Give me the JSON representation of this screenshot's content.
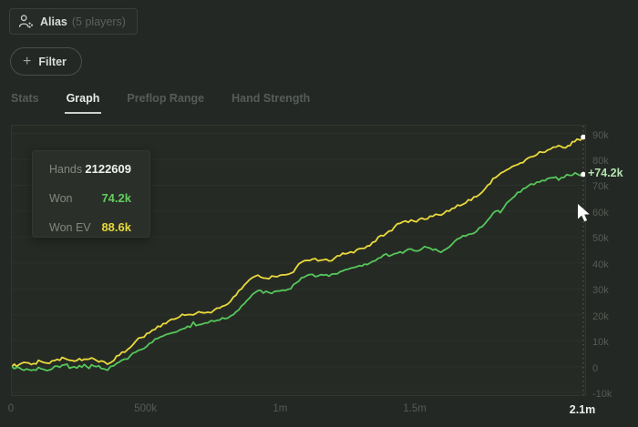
{
  "header": {
    "alias_chip": {
      "icon": "players-icon",
      "name": "Alias",
      "suffix": "(5 players)"
    },
    "filter_button": {
      "icon": "plus-icon",
      "label": "Filter"
    }
  },
  "tabs": {
    "items": [
      {
        "label": "Stats",
        "active": false
      },
      {
        "label": "Graph",
        "active": true
      },
      {
        "label": "Preflop Range",
        "active": false
      },
      {
        "label": "Hand Strength",
        "active": false
      }
    ]
  },
  "tooltip": {
    "rows": [
      {
        "label": "Hands",
        "value": "2122609",
        "color": "#f1f2ef"
      },
      {
        "label": "Won",
        "value": "74.2k",
        "color": "#62cd5f"
      },
      {
        "label": "Won EV",
        "value": "88.6k",
        "color": "#e5d83a"
      }
    ]
  },
  "colors": {
    "background": "#232825",
    "plot_background": "#262a24",
    "gridline": "#2d312b",
    "won_line": "#55c75c",
    "won_ev_line": "#e9da3d",
    "axis_label": "#565b54",
    "current_value_label": "#b5e3ae"
  },
  "chart_data": {
    "type": "line",
    "units_note": "x = hands in thousands, y = amount won in thousands (k)",
    "xlim": [
      0,
      2122.609
    ],
    "ylim": [
      -11,
      93
    ],
    "grid": true,
    "legend_position": "none",
    "x_ticks": [
      {
        "label": "0",
        "x": 0
      },
      {
        "label": "500k",
        "x": 500
      },
      {
        "label": "1m",
        "x": 1000
      },
      {
        "label": "1.5m",
        "x": 1500
      },
      {
        "label": "2.1m",
        "x": 2122.609,
        "current": true
      }
    ],
    "y_ticks": [
      {
        "label": "90k",
        "y": 90
      },
      {
        "label": "80k",
        "y": 80
      },
      {
        "label": "70k",
        "y": 70
      },
      {
        "label": "60k",
        "y": 60
      },
      {
        "label": "50k",
        "y": 50
      },
      {
        "label": "40k",
        "y": 40
      },
      {
        "label": "30k",
        "y": 30
      },
      {
        "label": "20k",
        "y": 20
      },
      {
        "label": "10k",
        "y": 10
      },
      {
        "label": "0",
        "y": 0
      },
      {
        "label": "-10k",
        "y": -10
      }
    ],
    "cursor": {
      "hands": 2122609,
      "won_display": "+74.2k",
      "won": 74.2,
      "won_ev": 88.6
    },
    "series": [
      {
        "name": "Won EV",
        "color": "#e9da3d",
        "points": [
          [
            0,
            0
          ],
          [
            27,
            0.8
          ],
          [
            54,
            1.5
          ],
          [
            81,
            1.2
          ],
          [
            108,
            2.0
          ],
          [
            129,
            1.4
          ],
          [
            149,
            2.2
          ],
          [
            169,
            2.8
          ],
          [
            196,
            3.2
          ],
          [
            223,
            2.4
          ],
          [
            251,
            3.1
          ],
          [
            278,
            2.8
          ],
          [
            305,
            3.0
          ],
          [
            332,
            2.2
          ],
          [
            355,
            0.9
          ],
          [
            379,
            2.4
          ],
          [
            399,
            4.4
          ],
          [
            420,
            5.6
          ],
          [
            440,
            7.4
          ],
          [
            460,
            9.8
          ],
          [
            481,
            11.2
          ],
          [
            501,
            12.8
          ],
          [
            521,
            14.0
          ],
          [
            542,
            15.6
          ],
          [
            562,
            16.6
          ],
          [
            582,
            17.6
          ],
          [
            603,
            18.3
          ],
          [
            623,
            19.2
          ],
          [
            643,
            19.8
          ],
          [
            663,
            20.1
          ],
          [
            684,
            20.5
          ],
          [
            704,
            20.9
          ],
          [
            728,
            21.0
          ],
          [
            752,
            21.9
          ],
          [
            772,
            22.6
          ],
          [
            792,
            23.6
          ],
          [
            812,
            25.2
          ],
          [
            833,
            27.6
          ],
          [
            853,
            30.0
          ],
          [
            873,
            32.5
          ],
          [
            894,
            34.4
          ],
          [
            914,
            35.3
          ],
          [
            934,
            34.2
          ],
          [
            955,
            33.9
          ],
          [
            975,
            34.8
          ],
          [
            995,
            35.2
          ],
          [
            1016,
            35.4
          ],
          [
            1036,
            36.0
          ],
          [
            1056,
            38.2
          ],
          [
            1076,
            40.3
          ],
          [
            1097,
            41.0
          ],
          [
            1117,
            41.5
          ],
          [
            1137,
            40.8
          ],
          [
            1158,
            41.2
          ],
          [
            1178,
            40.8
          ],
          [
            1198,
            41.8
          ],
          [
            1219,
            42.8
          ],
          [
            1239,
            43.5
          ],
          [
            1259,
            44.3
          ],
          [
            1280,
            45.0
          ],
          [
            1300,
            45.6
          ],
          [
            1320,
            46.5
          ],
          [
            1340,
            48.0
          ],
          [
            1361,
            50.0
          ],
          [
            1381,
            50.5
          ],
          [
            1401,
            52.3
          ],
          [
            1422,
            54.0
          ],
          [
            1442,
            55.3
          ],
          [
            1462,
            56.2
          ],
          [
            1483,
            56.6
          ],
          [
            1503,
            55.9
          ],
          [
            1523,
            57.3
          ],
          [
            1543,
            57.0
          ],
          [
            1564,
            58.0
          ],
          [
            1584,
            58.6
          ],
          [
            1604,
            59.1
          ],
          [
            1625,
            60.0
          ],
          [
            1645,
            61.2
          ],
          [
            1665,
            62.1
          ],
          [
            1686,
            63.2
          ],
          [
            1706,
            64.2
          ],
          [
            1726,
            65.6
          ],
          [
            1747,
            67.3
          ],
          [
            1767,
            70.0
          ],
          [
            1787,
            72.6
          ],
          [
            1807,
            73.8
          ],
          [
            1828,
            75.3
          ],
          [
            1848,
            76.4
          ],
          [
            1868,
            77.6
          ],
          [
            1889,
            78.6
          ],
          [
            1909,
            79.9
          ],
          [
            1929,
            81.0
          ],
          [
            1950,
            81.8
          ],
          [
            1970,
            82.7
          ],
          [
            1990,
            83.6
          ],
          [
            2011,
            84.7
          ],
          [
            2031,
            85.3
          ],
          [
            2048,
            84.5
          ],
          [
            2065,
            85.2
          ],
          [
            2082,
            86.8
          ],
          [
            2099,
            87.8
          ],
          [
            2112,
            87.4
          ],
          [
            2122.6,
            88.6
          ]
        ]
      },
      {
        "name": "Won",
        "color": "#55c75c",
        "points": [
          [
            0,
            0
          ],
          [
            27,
            -0.4
          ],
          [
            54,
            -0.9
          ],
          [
            81,
            -1.2
          ],
          [
            108,
            -0.8
          ],
          [
            129,
            -1.5
          ],
          [
            149,
            -0.9
          ],
          [
            169,
            0.2
          ],
          [
            196,
            0.7
          ],
          [
            223,
            -0.3
          ],
          [
            251,
            0.4
          ],
          [
            278,
            0.0
          ],
          [
            305,
            0.2
          ],
          [
            332,
            -0.7
          ],
          [
            355,
            -1.4
          ],
          [
            379,
            0.4
          ],
          [
            399,
            1.8
          ],
          [
            420,
            2.9
          ],
          [
            440,
            4.2
          ],
          [
            460,
            5.6
          ],
          [
            481,
            6.6
          ],
          [
            501,
            7.8
          ],
          [
            521,
            9.3
          ],
          [
            542,
            10.9
          ],
          [
            562,
            11.8
          ],
          [
            582,
            12.6
          ],
          [
            603,
            13.2
          ],
          [
            623,
            14.1
          ],
          [
            643,
            14.8
          ],
          [
            663,
            15.2
          ],
          [
            674,
            17.2
          ],
          [
            684,
            15.8
          ],
          [
            704,
            16.3
          ],
          [
            728,
            16.9
          ],
          [
            752,
            17.5
          ],
          [
            772,
            18.0
          ],
          [
            792,
            18.5
          ],
          [
            812,
            19.5
          ],
          [
            833,
            21.2
          ],
          [
            853,
            23.4
          ],
          [
            873,
            25.5
          ],
          [
            894,
            27.9
          ],
          [
            914,
            29.3
          ],
          [
            934,
            28.4
          ],
          [
            955,
            28.6
          ],
          [
            975,
            29.0
          ],
          [
            995,
            29.2
          ],
          [
            1016,
            29.4
          ],
          [
            1036,
            30.0
          ],
          [
            1056,
            32.3
          ],
          [
            1076,
            34.3
          ],
          [
            1097,
            35.2
          ],
          [
            1117,
            35.6
          ],
          [
            1137,
            35.0
          ],
          [
            1158,
            35.3
          ],
          [
            1178,
            34.9
          ],
          [
            1198,
            35.8
          ],
          [
            1219,
            36.6
          ],
          [
            1239,
            37.4
          ],
          [
            1259,
            38.0
          ],
          [
            1280,
            38.5
          ],
          [
            1300,
            38.8
          ],
          [
            1320,
            39.4
          ],
          [
            1340,
            40.6
          ],
          [
            1361,
            41.8
          ],
          [
            1381,
            43.1
          ],
          [
            1401,
            42.6
          ],
          [
            1422,
            43.6
          ],
          [
            1442,
            44.3
          ],
          [
            1462,
            44.7
          ],
          [
            1483,
            45.4
          ],
          [
            1503,
            44.6
          ],
          [
            1523,
            45.5
          ],
          [
            1543,
            46.0
          ],
          [
            1564,
            45.0
          ],
          [
            1584,
            44.6
          ],
          [
            1604,
            44.9
          ],
          [
            1625,
            46.2
          ],
          [
            1645,
            48.4
          ],
          [
            1665,
            49.6
          ],
          [
            1686,
            50.4
          ],
          [
            1706,
            51.2
          ],
          [
            1726,
            52.2
          ],
          [
            1747,
            54.0
          ],
          [
            1767,
            56.5
          ],
          [
            1787,
            59.2
          ],
          [
            1807,
            60.2
          ],
          [
            1814,
            59.4
          ],
          [
            1828,
            61.5
          ],
          [
            1848,
            64.0
          ],
          [
            1868,
            65.8
          ],
          [
            1889,
            67.4
          ],
          [
            1909,
            69.0
          ],
          [
            1929,
            70.5
          ],
          [
            1950,
            71.2
          ],
          [
            1970,
            71.9
          ],
          [
            1990,
            72.6
          ],
          [
            2011,
            72.9
          ],
          [
            2031,
            72.0
          ],
          [
            2051,
            73.0
          ],
          [
            2072,
            73.8
          ],
          [
            2092,
            74.8
          ],
          [
            2106,
            74.0
          ],
          [
            2122.6,
            74.2
          ]
        ]
      }
    ]
  }
}
